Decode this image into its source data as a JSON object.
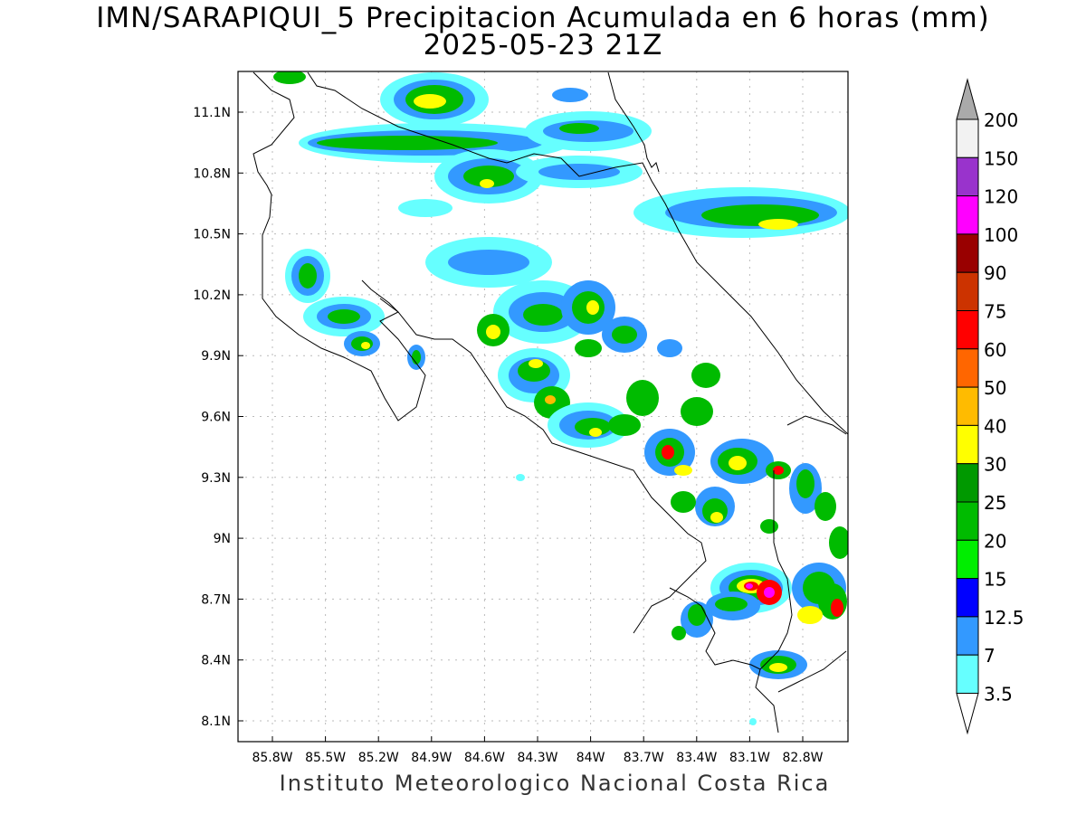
{
  "title_line1": "IMN/SARAPIQUI_5 Precipitacion Acumulada en 6 horas (mm)",
  "title_line2": "2025-05-23 21Z",
  "footer": "Instituto Meteorologico Nacional Costa Rica",
  "map": {
    "lon_ticks": [
      "85.8W",
      "85.5W",
      "85.2W",
      "84.9W",
      "84.6W",
      "84.3W",
      "84W",
      "83.7W",
      "83.4W",
      "83.1W",
      "82.8W"
    ],
    "lat_ticks": [
      "11.1N",
      "10.8N",
      "10.5N",
      "10.2N",
      "9.9N",
      "9.6N",
      "9.3N",
      "9N",
      "8.7N",
      "8.4N",
      "8.1N"
    ]
  },
  "colorbar": {
    "labels": [
      "200",
      "150",
      "120",
      "100",
      "90",
      "75",
      "60",
      "50",
      "40",
      "30",
      "25",
      "20",
      "15",
      "12.5",
      "7",
      "3.5"
    ],
    "colors": [
      "#f2f2f2",
      "#9933cc",
      "#ff00ff",
      "#990000",
      "#cc3300",
      "#ff0000",
      "#ff6600",
      "#ffbb00",
      "#ffff00",
      "#009900",
      "#00bb00",
      "#00ee00",
      "#0000ff",
      "#3399ff",
      "#66ffff"
    ]
  }
}
